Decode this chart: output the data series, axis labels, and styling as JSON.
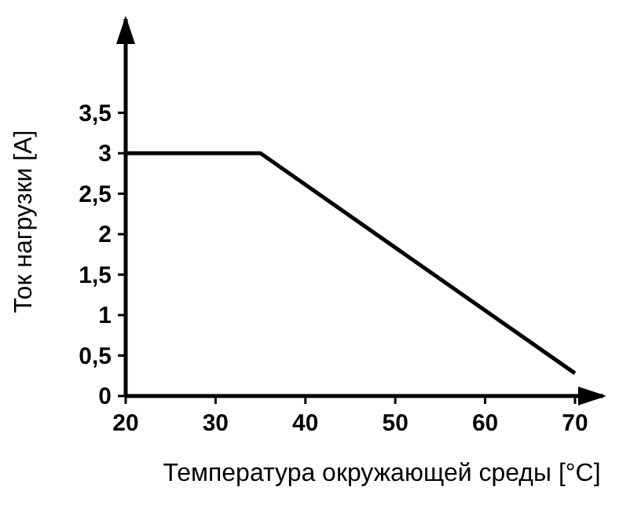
{
  "chart_data": {
    "type": "line",
    "xlabel": "Температура окружающей среды [°C]",
    "ylabel": "Ток нагрузки [A]",
    "x": [
      20,
      35,
      70
    ],
    "series": [
      {
        "color": "#000000",
        "values": [
          3,
          3,
          0.28
        ]
      }
    ],
    "xlim": [
      20,
      73.5
    ],
    "ylim": [
      0,
      4.7
    ],
    "xticks": [
      20,
      30,
      40,
      50,
      60,
      70
    ],
    "yticks": [
      0,
      {
        "value": 0.5,
        "label": "0,5"
      },
      1,
      {
        "value": 1.5,
        "label": "1,5"
      },
      2,
      {
        "value": 2.5,
        "label": "2,5"
      },
      3,
      {
        "value": 3.5,
        "label": "3,5"
      }
    ],
    "grid": false,
    "marker": "none",
    "line_style": "solid"
  }
}
